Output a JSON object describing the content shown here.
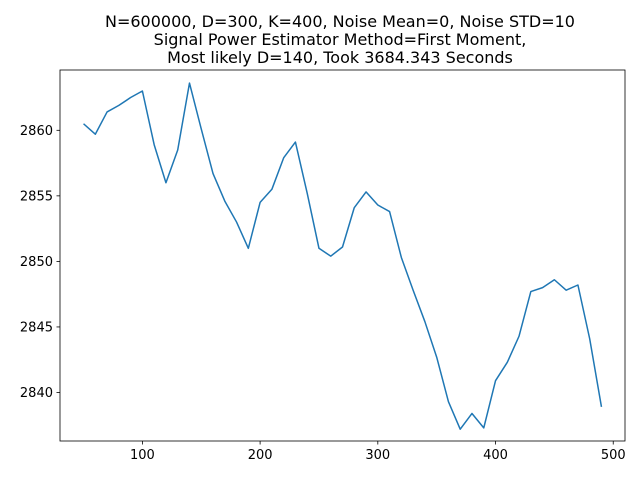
{
  "chart_data": {
    "type": "line",
    "title_lines": [
      "N=600000, D=300, K=400, Noise Mean=0, Noise STD=10",
      "Signal Power Estimator Method=First Moment,",
      "Most likely D=140, Took 3684.343 Seconds"
    ],
    "xlabel": "",
    "ylabel": "",
    "xlim": [
      30,
      510
    ],
    "ylim": [
      2836.3,
      2864.6
    ],
    "xticks": [
      100,
      200,
      300,
      400,
      500
    ],
    "yticks": [
      2840,
      2845,
      2850,
      2855,
      2860
    ],
    "grid": false,
    "line_color": "#1f77b4",
    "series": [
      {
        "x": [
          50,
          60,
          70,
          80,
          90,
          100,
          110,
          120,
          130,
          140,
          150,
          160,
          170,
          180,
          190,
          200,
          210,
          220,
          230,
          240,
          250,
          260,
          270,
          280,
          290,
          300,
          310,
          320,
          330,
          340,
          350,
          360,
          370,
          380,
          390,
          400,
          410,
          420,
          430,
          440,
          450,
          460,
          470,
          480,
          490
        ],
        "values": [
          2860.5,
          2859.7,
          2861.4,
          2861.9,
          2862.5,
          2863.0,
          2858.9,
          2856.0,
          2858.5,
          2863.6,
          2860.1,
          2856.7,
          2854.6,
          2853.0,
          2851.0,
          2854.5,
          2855.5,
          2857.9,
          2859.1,
          2855.2,
          2851.0,
          2850.4,
          2851.1,
          2854.1,
          2855.3,
          2854.3,
          2853.8,
          2850.3,
          2847.8,
          2845.4,
          2842.7,
          2839.3,
          2837.2,
          2838.4,
          2837.3,
          2840.9,
          2842.3,
          2844.3,
          2847.7,
          2848.0,
          2848.6,
          2847.8,
          2848.2,
          2844.1,
          2838.9
        ]
      }
    ]
  }
}
